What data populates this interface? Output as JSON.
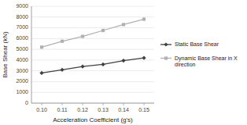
{
  "chart_data": {
    "type": "line",
    "x": [
      0.1,
      0.11,
      0.12,
      0.13,
      0.14,
      0.15
    ],
    "series": [
      {
        "name": "Static Base Shear",
        "color": "#404040",
        "marker": "diamond",
        "values": [
          2800,
          3100,
          3400,
          3600,
          3950,
          4200
        ]
      },
      {
        "name": "Dynamic Base Shear in X\ndirection",
        "color": "#b0b0b0",
        "marker": "square",
        "values": [
          5200,
          5750,
          6200,
          6750,
          7300,
          7800
        ]
      }
    ],
    "xlabel": "Acceleration Coefficient (g's)",
    "ylabel": "Base Shear (kN)",
    "xlim": [
      0.095,
      0.155
    ],
    "ylim": [
      0,
      9000
    ],
    "xticks": [
      {
        "value": 0.1,
        "label": "0.10"
      },
      {
        "value": 0.11,
        "label": "0.11"
      },
      {
        "value": 0.12,
        "label": "0.12"
      },
      {
        "value": 0.13,
        "label": "0.13"
      },
      {
        "value": 0.14,
        "label": "0.14"
      },
      {
        "value": 0.15,
        "label": "0.15"
      }
    ],
    "yticks": [
      0,
      1000,
      2000,
      3000,
      4000,
      5000,
      6000,
      7000,
      8000,
      9000
    ],
    "grid": "y",
    "legend": "right"
  }
}
